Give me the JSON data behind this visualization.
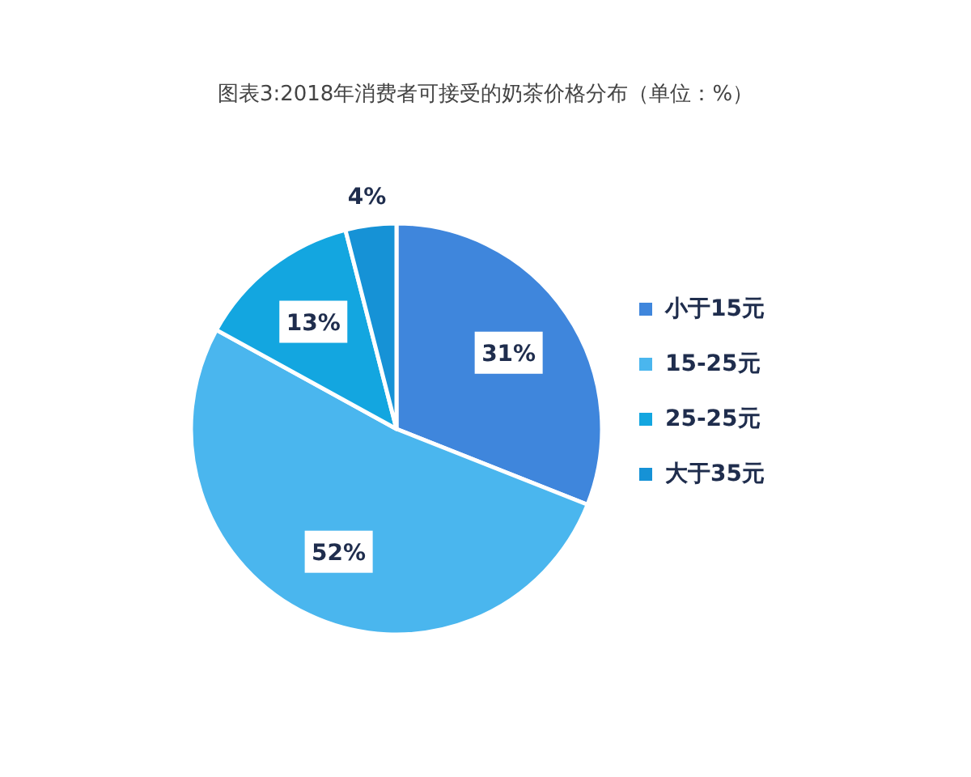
{
  "chart_data": {
    "type": "pie",
    "title": "图表3:2018年消费者可接受的奶茶价格分布（单位：%）",
    "categories": [
      "小于15元",
      "15-25元",
      "25-25元",
      "大于35元"
    ],
    "values": [
      31,
      52,
      13,
      4
    ],
    "value_labels": [
      "31%",
      "52%",
      "13%",
      "4%"
    ],
    "colors": [
      "#3f86dc",
      "#4ab6ee",
      "#13a6e0",
      "#1692d6"
    ],
    "legend": "right"
  }
}
